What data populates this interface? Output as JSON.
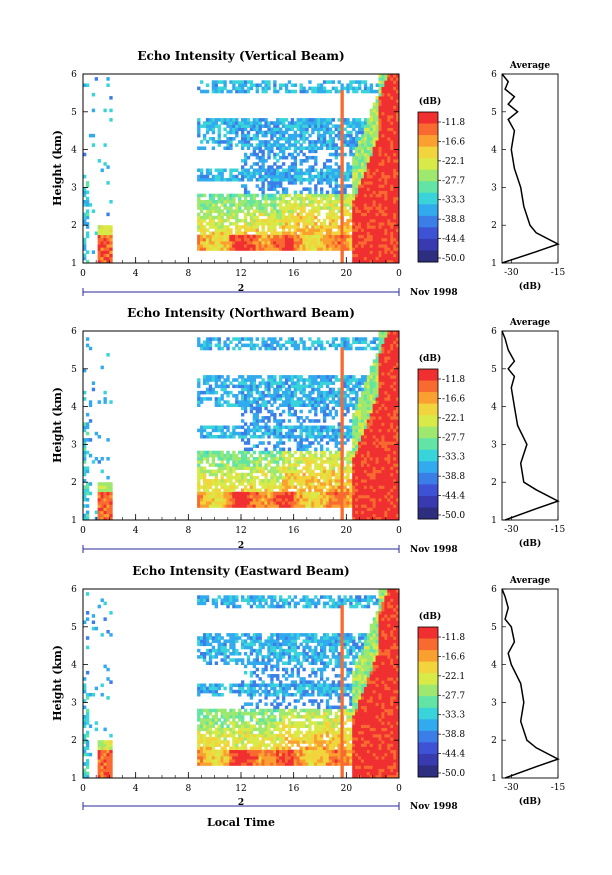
{
  "figure": {
    "xlabel": "Local Time",
    "date_label": "Nov 1998",
    "day_label": "2"
  },
  "colorbar": {
    "unit": "(dB)",
    "ticks": [
      "-11.8",
      "-16.6",
      "-22.1",
      "-27.7",
      "-33.3",
      "-38.8",
      "-44.4",
      "-50.0"
    ],
    "colors": [
      "#f03030",
      "#f86a30",
      "#faa030",
      "#f2d43c",
      "#d8ea48",
      "#9ee870",
      "#62e4a4",
      "#38d4da",
      "#32aaee",
      "#3b7ee8",
      "#3e52d6",
      "#383ab0",
      "#2e2e80"
    ]
  },
  "chart_data": [
    {
      "type": "heatmap",
      "title": "Echo Intensity (Vertical Beam)",
      "ylabel": "Height (km)",
      "xlim": [
        0,
        24
      ],
      "ylim": [
        1,
        6
      ],
      "xticks": [
        "0",
        "4",
        "8",
        "12",
        "16",
        "20",
        "0"
      ],
      "yticks": [
        "1",
        "2",
        "3",
        "4",
        "5",
        "6"
      ],
      "data_gaps_hours": [
        [
          2.2,
          8.6
        ]
      ],
      "profile": {
        "title": "Average",
        "xlabel": "(dB)",
        "xlim": [
          -33,
          -15
        ],
        "xticks": [
          "-30",
          "-15"
        ],
        "height_km": [
          1.0,
          1.3,
          1.5,
          1.8,
          2.0,
          2.5,
          3.0,
          3.5,
          4.0,
          4.5,
          4.8,
          5.0,
          5.2,
          5.4,
          5.6,
          5.8,
          6.0
        ],
        "db": [
          -33,
          -22,
          -15,
          -22,
          -24,
          -26,
          -27,
          -29,
          -30,
          -29,
          -31,
          -28,
          -31,
          -29,
          -32,
          -31,
          -33
        ]
      }
    },
    {
      "type": "heatmap",
      "title": "Echo Intensity (Northward Beam)",
      "ylabel": "Height (km)",
      "xlim": [
        0,
        24
      ],
      "ylim": [
        1,
        6
      ],
      "xticks": [
        "0",
        "4",
        "8",
        "12",
        "16",
        "20",
        "0"
      ],
      "yticks": [
        "1",
        "2",
        "3",
        "4",
        "5",
        "6"
      ],
      "data_gaps_hours": [
        [
          2.2,
          8.6
        ]
      ],
      "profile": {
        "title": "Average",
        "xlabel": "(dB)",
        "xlim": [
          -33,
          -15
        ],
        "xticks": [
          "-30",
          "-15"
        ],
        "height_km": [
          1.0,
          1.3,
          1.5,
          1.8,
          2.0,
          2.5,
          3.0,
          3.5,
          4.0,
          4.5,
          4.8,
          5.0,
          5.2,
          5.5,
          5.8,
          6.0
        ],
        "db": [
          -32,
          -22,
          -15,
          -22,
          -26,
          -27,
          -25,
          -28,
          -29,
          -30,
          -29,
          -31,
          -29,
          -31,
          -32,
          -33
        ]
      }
    },
    {
      "type": "heatmap",
      "title": "Echo Intensity (Eastward Beam)",
      "ylabel": "Height (km)",
      "xlim": [
        0,
        24
      ],
      "ylim": [
        1,
        6
      ],
      "xticks": [
        "0",
        "4",
        "8",
        "12",
        "16",
        "20",
        "0"
      ],
      "yticks": [
        "1",
        "2",
        "3",
        "4",
        "5",
        "6"
      ],
      "data_gaps_hours": [
        [
          2.2,
          8.6
        ]
      ],
      "profile": {
        "title": "Average",
        "xlabel": "(dB)",
        "xlim": [
          -33,
          -15
        ],
        "xticks": [
          "-30",
          "-15"
        ],
        "height_km": [
          1.0,
          1.3,
          1.5,
          1.8,
          2.0,
          2.5,
          3.0,
          3.5,
          4.0,
          4.3,
          4.6,
          5.0,
          5.2,
          5.5,
          5.8,
          6.0
        ],
        "db": [
          -32,
          -22,
          -15,
          -22,
          -25,
          -27,
          -26,
          -27,
          -30,
          -31,
          -29,
          -30,
          -32,
          -31,
          -32,
          -33
        ]
      }
    }
  ]
}
